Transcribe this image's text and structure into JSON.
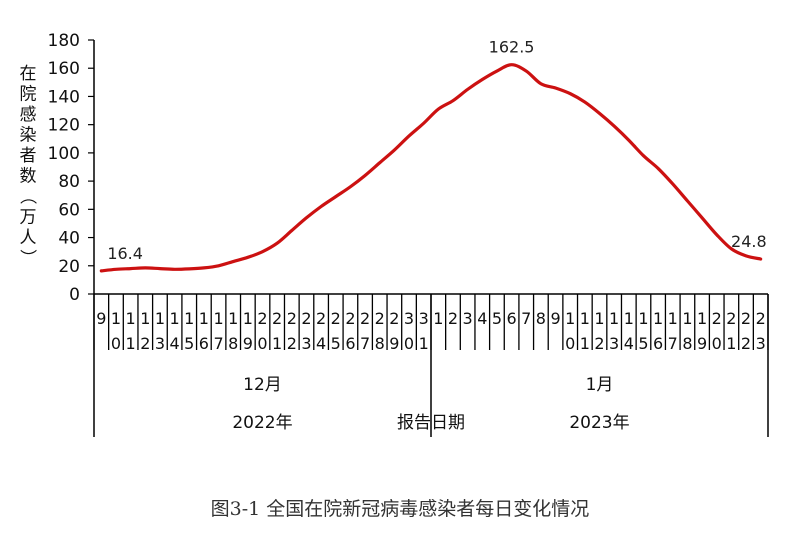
{
  "chart_data": {
    "type": "line",
    "ylabel": "在院感染者数（万人）",
    "xlabel": "报告日期",
    "ylim": [
      0,
      180
    ],
    "yticks": [
      0,
      20,
      40,
      60,
      80,
      100,
      120,
      140,
      160,
      180
    ],
    "x": [
      "9",
      "10",
      "11",
      "12",
      "13",
      "14",
      "15",
      "16",
      "17",
      "18",
      "19",
      "20",
      "21",
      "22",
      "23",
      "24",
      "25",
      "26",
      "27",
      "28",
      "29",
      "30",
      "31",
      "1",
      "2",
      "3",
      "4",
      "5",
      "6",
      "7",
      "8",
      "9",
      "10",
      "11",
      "12",
      "13",
      "14",
      "15",
      "16",
      "17",
      "18",
      "19",
      "20",
      "21",
      "22",
      "23"
    ],
    "x_label_lines": [
      [
        "9",
        ""
      ],
      [
        "1",
        "0"
      ],
      [
        "1",
        "1"
      ],
      [
        "1",
        "2"
      ],
      [
        "1",
        "3"
      ],
      [
        "1",
        "4"
      ],
      [
        "1",
        "5"
      ],
      [
        "1",
        "6"
      ],
      [
        "1",
        "7"
      ],
      [
        "1",
        "8"
      ],
      [
        "1",
        "9"
      ],
      [
        "2",
        "0"
      ],
      [
        "2",
        "1"
      ],
      [
        "2",
        "2"
      ],
      [
        "2",
        "3"
      ],
      [
        "2",
        "4"
      ],
      [
        "2",
        "5"
      ],
      [
        "2",
        "6"
      ],
      [
        "2",
        "7"
      ],
      [
        "2",
        "8"
      ],
      [
        "2",
        "9"
      ],
      [
        "3",
        "0"
      ],
      [
        "3",
        "1"
      ],
      [
        "1",
        ""
      ],
      [
        "2",
        ""
      ],
      [
        "3",
        ""
      ],
      [
        "4",
        ""
      ],
      [
        "5",
        ""
      ],
      [
        "6",
        ""
      ],
      [
        "7",
        ""
      ],
      [
        "8",
        ""
      ],
      [
        "9",
        ""
      ],
      [
        "1",
        "0"
      ],
      [
        "1",
        "1"
      ],
      [
        "1",
        "2"
      ],
      [
        "1",
        "3"
      ],
      [
        "1",
        "4"
      ],
      [
        "1",
        "5"
      ],
      [
        "1",
        "6"
      ],
      [
        "1",
        "7"
      ],
      [
        "1",
        "8"
      ],
      [
        "1",
        "9"
      ],
      [
        "2",
        "0"
      ],
      [
        "2",
        "1"
      ],
      [
        "2",
        "2"
      ],
      [
        "2",
        "3"
      ]
    ],
    "month_groups": [
      {
        "label": "12月",
        "year": "2022年",
        "count": 23
      },
      {
        "label": "1月",
        "year": "2023年",
        "count": 23
      }
    ],
    "series": [
      {
        "color": "#cc1111",
        "values": [
          16.4,
          17.5,
          18,
          18.5,
          18,
          17.5,
          17.8,
          18.5,
          20,
          23,
          26,
          30,
          36,
          45,
          54,
          62,
          69,
          76,
          84,
          93,
          102,
          112,
          121,
          131,
          137,
          145,
          152,
          158,
          162.5,
          158,
          149,
          146,
          142,
          136,
          128,
          119,
          109,
          98,
          89,
          78,
          66,
          54,
          42,
          32,
          27,
          24.8
        ]
      }
    ],
    "annotations": [
      {
        "index": 0,
        "text": "16.4"
      },
      {
        "index": 28,
        "text": "162.5"
      },
      {
        "index": 45,
        "text": "24.8"
      }
    ],
    "grid": false,
    "legend": "none"
  },
  "caption": "图3-1  全国在院新冠病毒感染者每日变化情况"
}
